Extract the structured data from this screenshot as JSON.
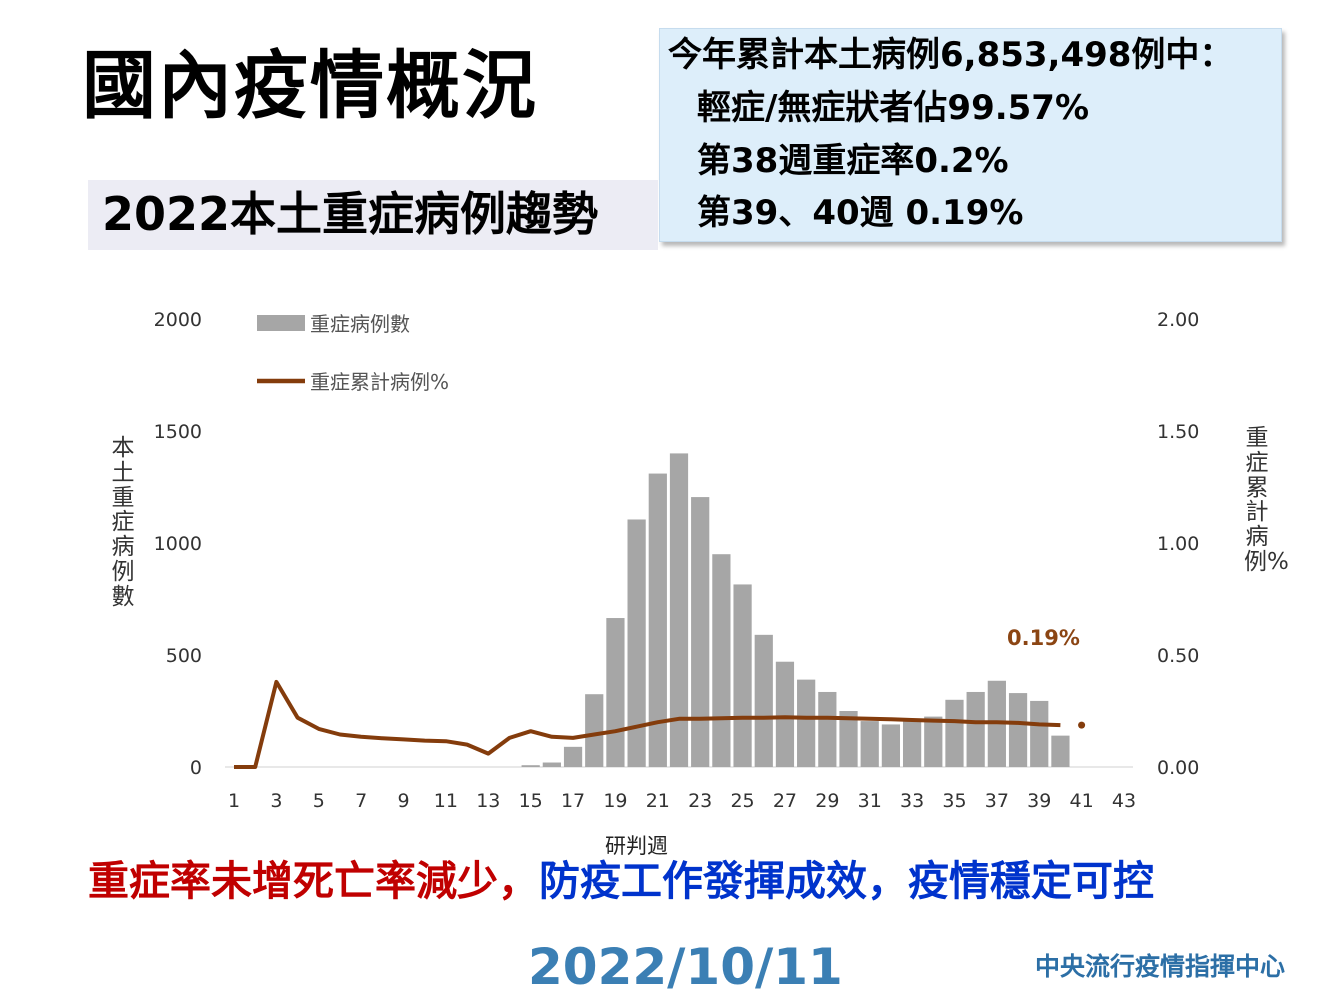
{
  "title": "國內疫情概況",
  "subtitle": "2022本土重症病例趨勢",
  "info_box": {
    "lines": [
      "今年累計本土病例6,853,498例中：",
      "輕症/無症狀者佔99.57%",
      "第38週重症率0.2%",
      "第39、40週 0.19%"
    ]
  },
  "bottom_message": {
    "part_red": "重症率未增死亡率減少，",
    "part_blue": "防疫工作發揮成效，疫情穩定可控"
  },
  "date": "2022/10/11",
  "organization": "中央流行疫情指揮中心",
  "colors": {
    "bar": "#a6a6a6",
    "line": "#843c0c",
    "annotation": "#8b4513",
    "red_text": "#c00000",
    "blue_text": "#0033cc"
  },
  "chart_data": {
    "type": "bar",
    "xlabel": "研判週",
    "ylabel_left": "本土重症病例數",
    "ylabel_right": "重症累計病例%",
    "ylim_left": [
      0,
      2000
    ],
    "ylim_right": [
      0,
      2.0
    ],
    "yticks_left": [
      "0",
      "500",
      "1000",
      "1500",
      "2000"
    ],
    "yticks_right": [
      "0.00",
      "0.50",
      "1.00",
      "1.50",
      "2.00"
    ],
    "x_ticks": [
      "1",
      "3",
      "5",
      "7",
      "9",
      "11",
      "13",
      "15",
      "17",
      "19",
      "21",
      "23",
      "25",
      "27",
      "29",
      "31",
      "33",
      "35",
      "37",
      "39",
      "41",
      "43"
    ],
    "x_range": [
      1,
      43
    ],
    "legend_position": "top-left",
    "weeks": [
      1,
      2,
      3,
      4,
      5,
      6,
      7,
      8,
      9,
      10,
      11,
      12,
      13,
      14,
      15,
      16,
      17,
      18,
      19,
      20,
      21,
      22,
      23,
      24,
      25,
      26,
      27,
      28,
      29,
      30,
      31,
      32,
      33,
      34,
      35,
      36,
      37,
      38,
      39,
      40
    ],
    "series": [
      {
        "name": "重症病例數",
        "type": "bar",
        "axis": "left",
        "values": [
          0,
          0,
          0,
          0,
          0,
          0,
          0,
          0,
          0,
          0,
          0,
          0,
          0,
          0,
          8,
          20,
          90,
          325,
          665,
          1105,
          1310,
          1400,
          1205,
          950,
          815,
          590,
          470,
          390,
          335,
          250,
          205,
          190,
          205,
          225,
          300,
          335,
          385,
          330,
          295,
          140
        ]
      },
      {
        "name": "重症累計病例%",
        "type": "line",
        "axis": "right",
        "values": [
          0.0,
          0.0,
          0.38,
          0.22,
          0.17,
          0.145,
          0.135,
          0.128,
          0.123,
          0.118,
          0.115,
          0.1,
          0.06,
          0.13,
          0.16,
          0.135,
          0.13,
          0.145,
          0.16,
          0.18,
          0.2,
          0.215,
          0.215,
          0.218,
          0.22,
          0.22,
          0.222,
          0.22,
          0.22,
          0.218,
          0.215,
          0.213,
          0.21,
          0.207,
          0.205,
          0.2,
          0.2,
          0.197,
          0.19,
          0.187
        ]
      }
    ],
    "annotation": "0.19%"
  }
}
